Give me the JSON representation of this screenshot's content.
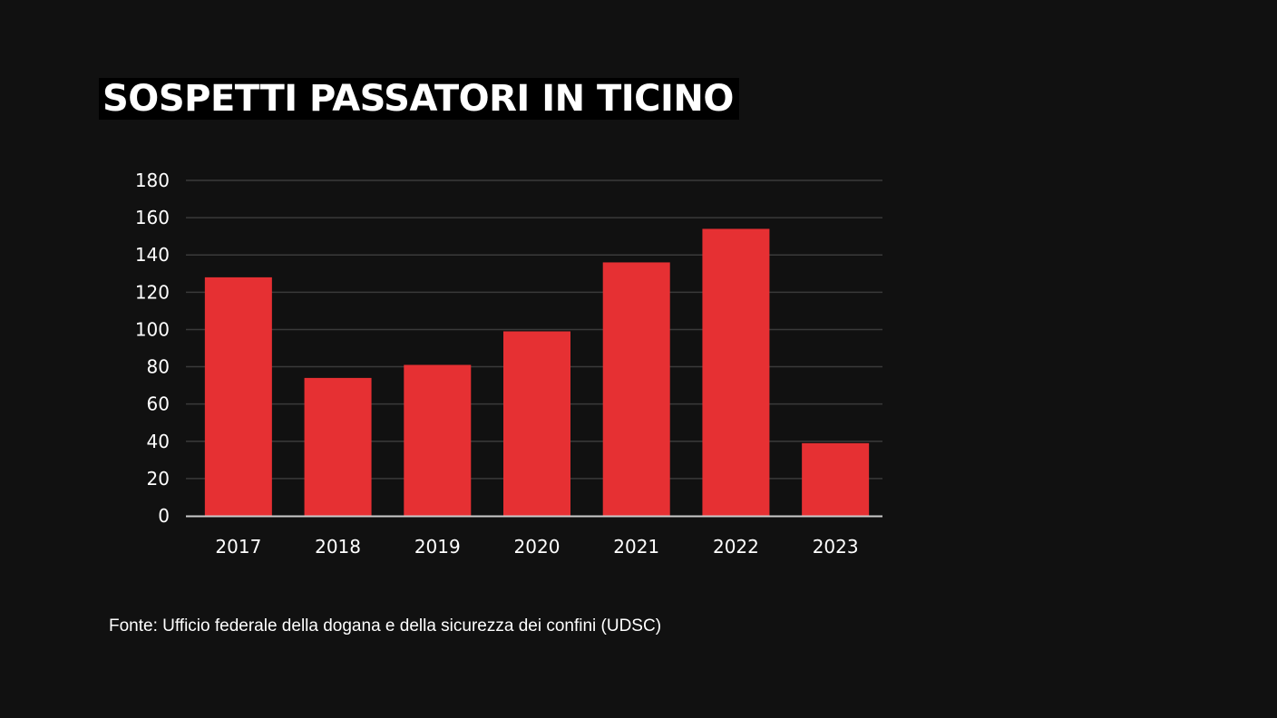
{
  "chart_data": {
    "type": "bar",
    "title": "SOSPETTI PASSATORI IN TICINO",
    "categories": [
      "2017",
      "2018",
      "2019",
      "2020",
      "2021",
      "2022",
      "2023"
    ],
    "values": [
      128,
      74,
      81,
      99,
      136,
      154,
      39
    ],
    "ylim": [
      0,
      180
    ],
    "yticks": [
      "0",
      "20",
      "40",
      "60",
      "80",
      "100",
      "120",
      "140",
      "160",
      "180"
    ],
    "xlabel": "",
    "ylabel": "",
    "grid": true,
    "bar_color": "#e63033",
    "grid_color": "#3a3a3a",
    "axis_color": "#cccccc"
  },
  "source": "Fonte: Ufficio federale della dogana e della sicurezza dei confini (UDSC)"
}
